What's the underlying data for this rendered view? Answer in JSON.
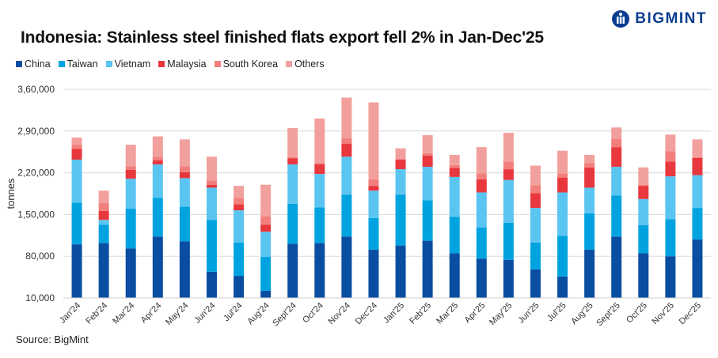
{
  "logo": {
    "text": "BIGMINT"
  },
  "source": "Source: BigMint",
  "chart_data": {
    "type": "bar",
    "stacked": true,
    "title": "Indonesia: Stainless steel finished flats export fell 2% in Jan-Dec'25",
    "xlabel": "",
    "ylabel": "tonnes",
    "ylim": [
      10000,
      360000
    ],
    "yticks": [
      10000,
      80000,
      150000,
      220000,
      290000,
      360000
    ],
    "ytick_labels": [
      "10,000",
      "80,000",
      "1,50,000",
      "2,20,000",
      "2,90,000",
      "3,60,000"
    ],
    "grid": true,
    "legend_position": "top-left",
    "categories": [
      "Jan'24",
      "Feb'24",
      "Mar'24",
      "Apr'24",
      "May'24",
      "Jun'24",
      "Jul'24",
      "Aug'24",
      "Sept'24",
      "Oct'24",
      "Nov'24",
      "Dec'24",
      "Jan'25",
      "Feb'25",
      "Mar'25",
      "Apr'25",
      "May'25",
      "Jun'25",
      "Jul'25",
      "Aug'25",
      "Sept'25",
      "Oct'25",
      "Nov'25",
      "Dec'25"
    ],
    "series": [
      {
        "name": "China",
        "color": "#0a4ea2",
        "values": [
          100000,
          102000,
          93000,
          113000,
          105000,
          54000,
          47000,
          22000,
          101000,
          102000,
          113000,
          91000,
          98000,
          106000,
          85000,
          76000,
          74000,
          58000,
          46000,
          91000,
          113000,
          85000,
          80000,
          108000
        ]
      },
      {
        "name": "Taiwan",
        "color": "#00a3e0",
        "values": [
          70000,
          31000,
          67000,
          65000,
          58000,
          87000,
          56000,
          57000,
          67000,
          60000,
          70000,
          53000,
          85000,
          68000,
          61000,
          52000,
          62000,
          45000,
          68000,
          61000,
          69000,
          47000,
          62000,
          53000
        ]
      },
      {
        "name": "Vietnam",
        "color": "#5bc5f2",
        "values": [
          72000,
          8000,
          50000,
          56000,
          48000,
          54000,
          54000,
          42000,
          66000,
          56000,
          64000,
          46000,
          43000,
          56000,
          67000,
          59000,
          72000,
          58000,
          73000,
          43000,
          48000,
          44000,
          72000,
          55000
        ]
      },
      {
        "name": "Malaysia",
        "color": "#e8383d",
        "values": [
          18000,
          15000,
          15000,
          7000,
          10000,
          5000,
          10000,
          12000,
          10000,
          16000,
          22000,
          8000,
          16000,
          19000,
          15000,
          22000,
          18000,
          25000,
          25000,
          34000,
          33000,
          22000,
          25000,
          29000
        ]
      },
      {
        "name": "South Korea",
        "color": "#f27f7c",
        "values": [
          7000,
          13000,
          6000,
          6000,
          10000,
          7000,
          11000,
          14000,
          2000,
          2000,
          9000,
          11000,
          1000,
          4000,
          5000,
          10000,
          13000,
          13000,
          7000,
          7000,
          14000,
          2000,
          17000,
          1000
        ]
      },
      {
        "name": "Others",
        "color": "#f2a09d",
        "values": [
          12000,
          21000,
          36000,
          34000,
          45000,
          40000,
          20000,
          53000,
          49000,
          75000,
          68000,
          129000,
          18000,
          30000,
          17000,
          44000,
          48000,
          33000,
          38000,
          14000,
          19000,
          29000,
          28000,
          30000
        ]
      }
    ]
  }
}
